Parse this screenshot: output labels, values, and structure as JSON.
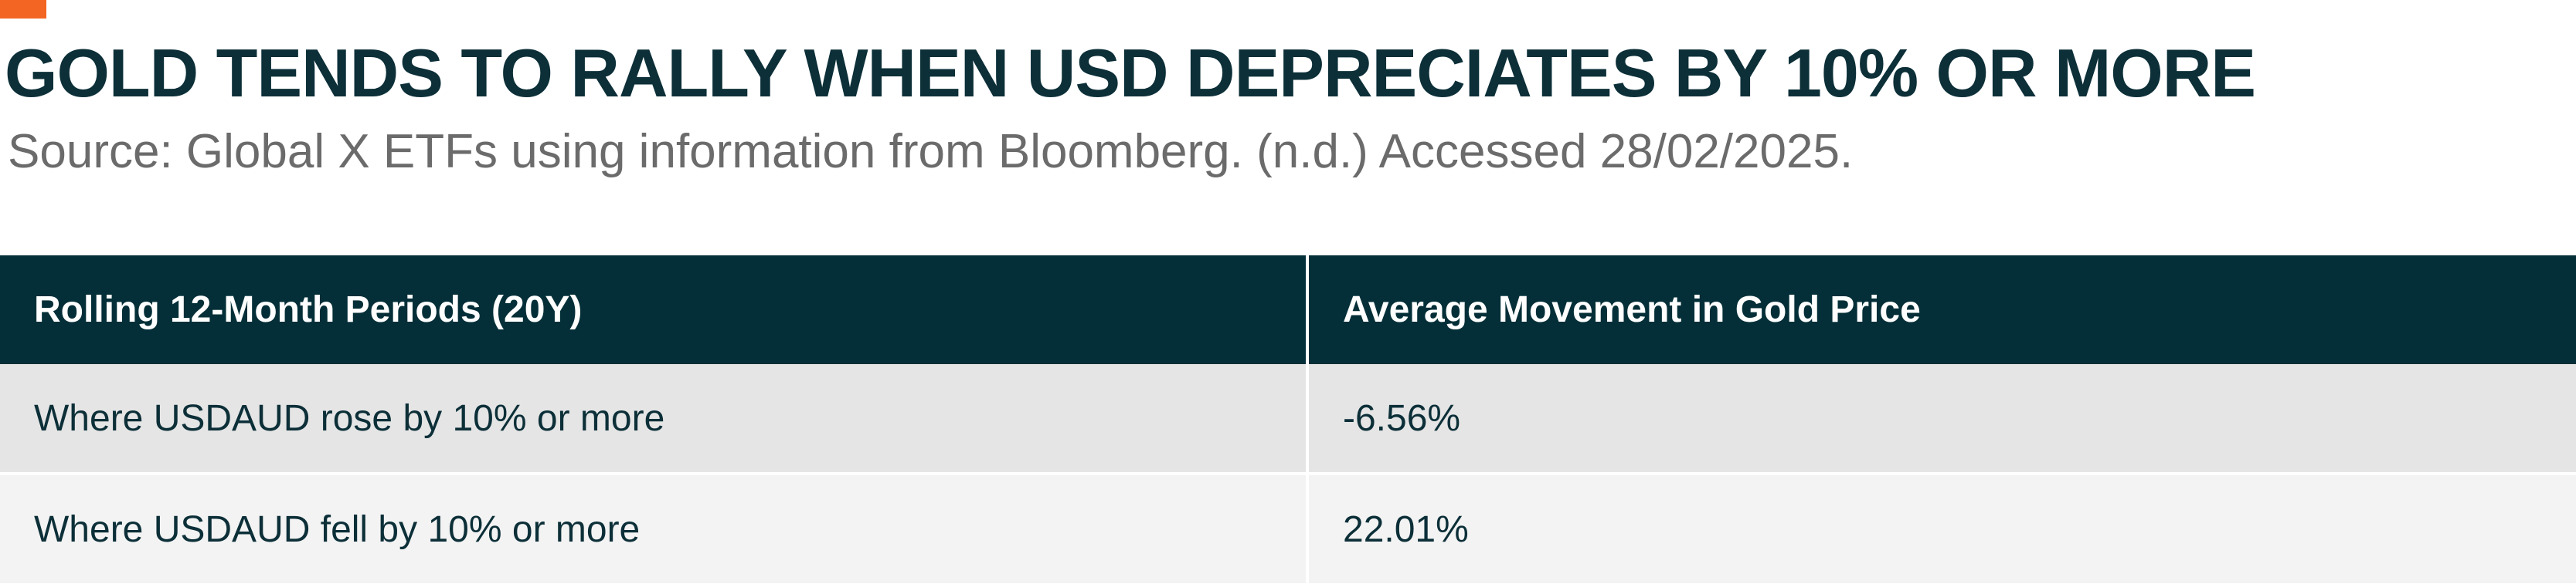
{
  "colors": {
    "accent": "#f26522",
    "header_bg": "#042f38",
    "title_text": "#0c2f38",
    "row_odd_bg": "#e5e5e5",
    "row_even_bg": "#f3f3f3"
  },
  "title": "GOLD TENDS TO RALLY WHEN USD DEPRECIATES BY 10% OR MORE",
  "source": "Source: Global X ETFs using information from Bloomberg. (n.d.) Accessed 28/02/2025.",
  "table": {
    "headers": [
      "Rolling 12-Month Periods (20Y)",
      "Average Movement in Gold Price"
    ],
    "rows": [
      [
        "Where USDAUD rose by 10% or more",
        "-6.56%"
      ],
      [
        "Where USDAUD fell by 10% or more",
        "22.01%"
      ]
    ]
  }
}
